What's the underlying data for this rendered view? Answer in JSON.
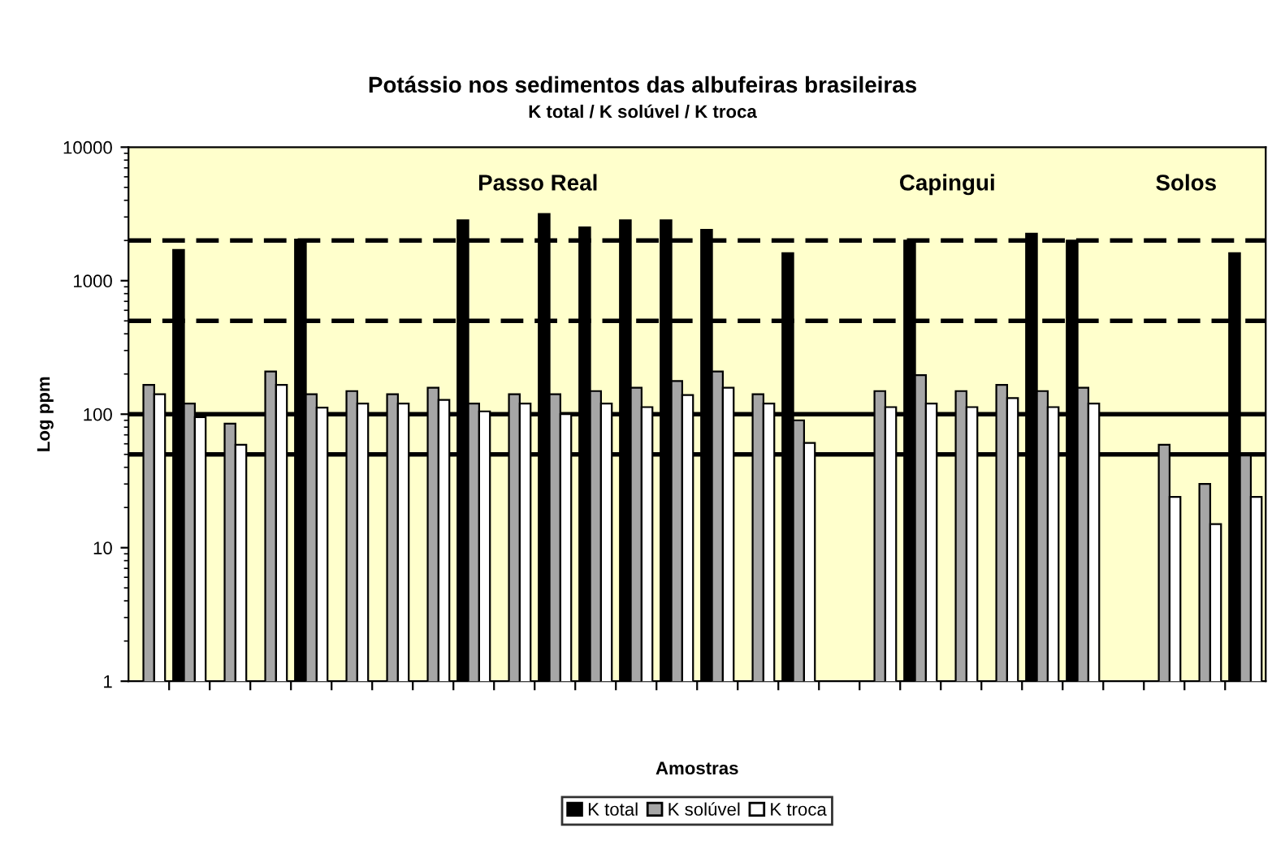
{
  "chart_data": {
    "type": "bar",
    "title": "Potássio nos sedimentos das albufeiras brasileiras",
    "subtitle": "K total / K solúvel / K troca",
    "xlabel": "Amostras",
    "ylabel": "Log ppm",
    "categories": [
      null,
      null,
      null,
      null,
      null,
      null,
      null,
      null,
      null,
      null,
      null,
      null,
      null,
      null,
      null,
      null,
      null,
      null,
      null,
      null,
      null,
      null,
      null,
      null,
      null,
      null,
      null,
      null
    ],
    "series": [
      {
        "name": "K total",
        "color": "#000000",
        "values": [
          null,
          1700,
          null,
          null,
          2030,
          null,
          null,
          null,
          2830,
          null,
          3160,
          2510,
          2830,
          2830,
          2400,
          null,
          1610,
          null,
          null,
          2000,
          null,
          null,
          2250,
          2000,
          null,
          null,
          null,
          1610
        ]
      },
      {
        "name": "K solúvel",
        "color": "#a6a6a6",
        "values": [
          166,
          120,
          85,
          209,
          141,
          149,
          141,
          158,
          120,
          141,
          141,
          149,
          158,
          177,
          209,
          141,
          90,
          null,
          149,
          196,
          149,
          166,
          149,
          158,
          null,
          59,
          30,
          49
        ]
      },
      {
        "name": "K troca",
        "color": "#ffffff",
        "values": [
          141,
          95,
          59,
          166,
          112,
          120,
          120,
          128,
          105,
          120,
          100,
          120,
          113,
          139,
          158,
          120,
          61,
          null,
          113,
          120,
          113,
          132,
          113,
          120,
          null,
          24,
          15,
          24
        ]
      }
    ],
    "log": "y",
    "ylim": [
      1,
      10000
    ],
    "yticks": [
      1,
      10,
      100,
      1000,
      10000
    ],
    "ref_lines": [
      {
        "axis": "y",
        "value": 2000,
        "line_style": "dashed"
      },
      {
        "axis": "y",
        "value": 500,
        "line_style": "dashed"
      },
      {
        "axis": "y",
        "value": 100,
        "line_style": "solid"
      },
      {
        "axis": "y",
        "value": 50,
        "line_style": "solid"
      }
    ],
    "annotations": [
      "Passo Real",
      "Capingui",
      "Solos"
    ],
    "legend": "bottom",
    "grid": false
  }
}
